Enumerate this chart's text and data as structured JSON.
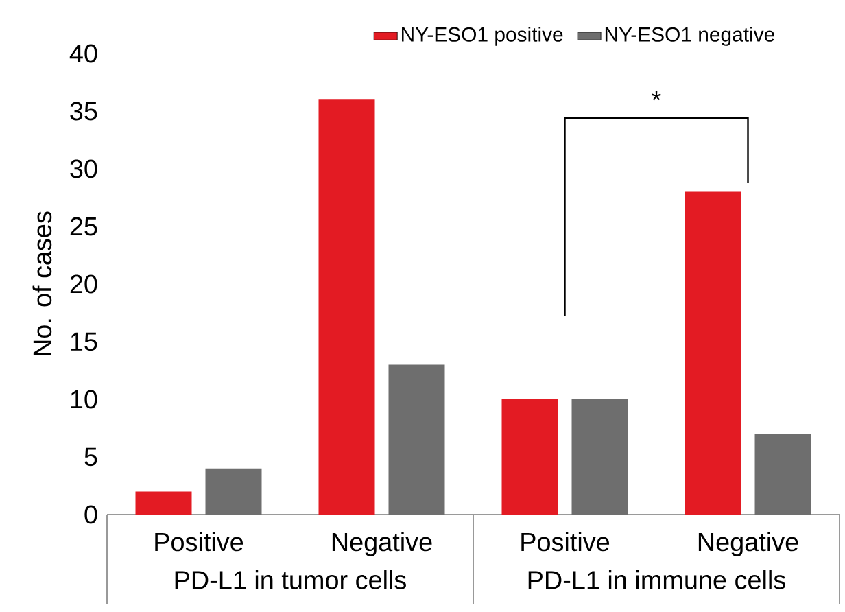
{
  "chart_data": {
    "type": "bar",
    "ylabel": "No. of cases",
    "categories": [
      "Positive",
      "Negative",
      "Positive",
      "Negative"
    ],
    "series": [
      {
        "name": "NY-ESO1 positive",
        "color": "#e31b23",
        "values": [
          2,
          36,
          10,
          28
        ]
      },
      {
        "name": "NY-ESO1 negative",
        "color": "#6e6e6e",
        "values": [
          4,
          13,
          10,
          7
        ]
      }
    ],
    "ylim": [
      0,
      40
    ],
    "yticks": [
      0,
      5,
      10,
      15,
      20,
      25,
      30,
      35,
      40
    ],
    "annotations": [
      "PD-L1 in tumor cells",
      "PD-L1 in immune cells",
      "*"
    ],
    "legend": "top"
  }
}
